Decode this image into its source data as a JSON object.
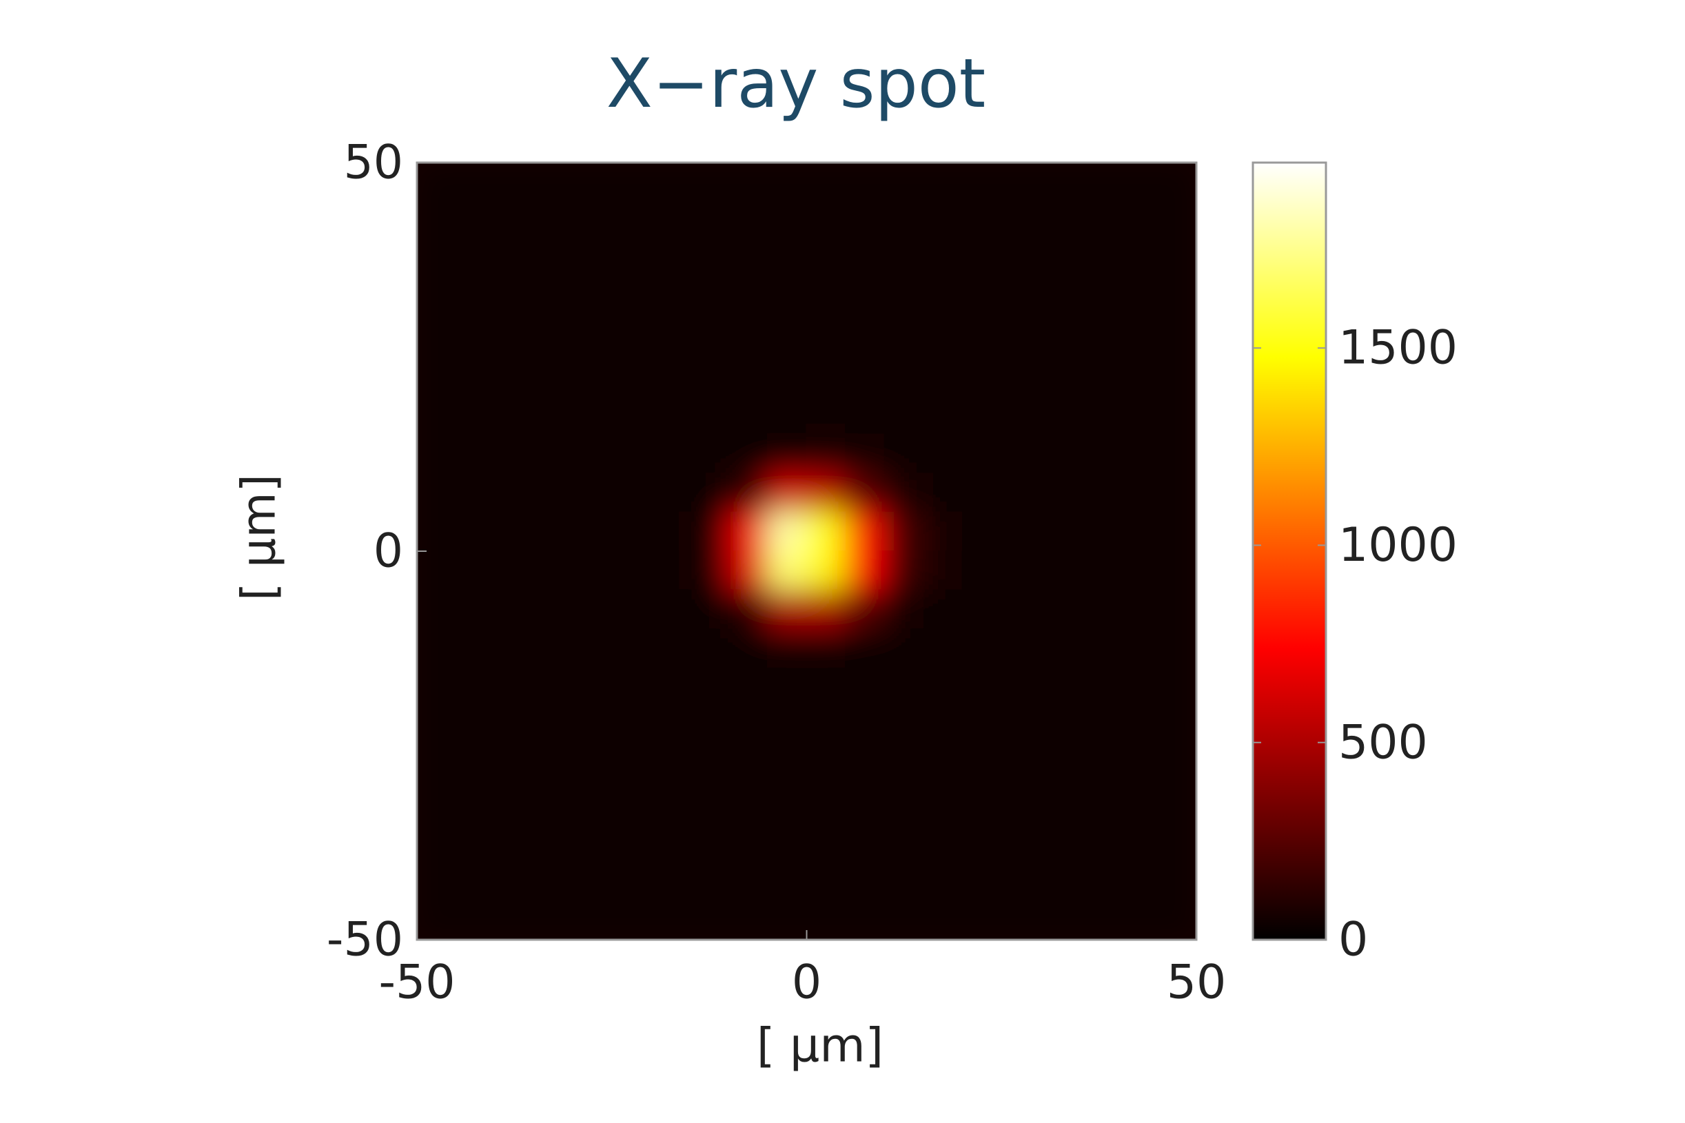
{
  "chart_data": {
    "type": "heatmap",
    "title": "X−ray spot",
    "xlabel": "[ μm]",
    "ylabel": "[ μm]",
    "xlim": [
      -50,
      50
    ],
    "xticks": [
      -50,
      0,
      50
    ],
    "ylim": [
      -50,
      50
    ],
    "yticks": [
      -50,
      0,
      50
    ],
    "colormap": "hot",
    "clim": [
      0,
      1970
    ],
    "cticks": [
      0,
      500,
      1000,
      1500
    ],
    "x": [
      -47.5,
      -42.5,
      -37.5,
      -32.5,
      -27.5,
      -22.5,
      -17.5,
      -12.5,
      -7.5,
      -2.5,
      2.5,
      7.5,
      12.5,
      17.5,
      22.5,
      27.5,
      32.5,
      37.5,
      42.5,
      47.5
    ],
    "y": [
      47.5,
      42.5,
      37.5,
      32.5,
      27.5,
      22.5,
      17.5,
      12.5,
      7.5,
      2.5,
      -2.5,
      -7.5,
      -12.5,
      -17.5,
      -22.5,
      -27.5,
      -32.5,
      -37.5,
      -42.5,
      -47.5
    ],
    "z": [
      [
        40,
        40,
        40,
        40,
        40,
        40,
        40,
        40,
        40,
        40,
        40,
        40,
        40,
        40,
        40,
        40,
        40,
        40,
        40,
        40
      ],
      [
        40,
        40,
        40,
        40,
        40,
        40,
        40,
        40,
        40,
        40,
        40,
        40,
        40,
        40,
        40,
        40,
        40,
        40,
        40,
        40
      ],
      [
        40,
        40,
        40,
        40,
        40,
        40,
        40,
        40,
        40,
        40,
        40,
        40,
        40,
        40,
        40,
        40,
        40,
        40,
        40,
        40
      ],
      [
        40,
        40,
        40,
        40,
        40,
        40,
        40,
        40,
        40,
        40,
        40,
        40,
        40,
        40,
        40,
        40,
        40,
        40,
        40,
        40
      ],
      [
        40,
        40,
        40,
        40,
        40,
        40,
        40,
        40,
        40,
        40,
        40,
        40,
        40,
        40,
        40,
        40,
        40,
        40,
        40,
        40
      ],
      [
        40,
        40,
        40,
        40,
        40,
        40,
        40,
        40,
        40,
        40,
        40,
        40,
        40,
        40,
        40,
        40,
        40,
        40,
        40,
        40
      ],
      [
        40,
        40,
        40,
        40,
        40,
        40,
        40,
        40,
        40,
        40,
        40,
        40,
        40,
        40,
        40,
        40,
        40,
        40,
        40,
        40
      ],
      [
        40,
        40,
        40,
        40,
        40,
        40,
        40,
        40,
        40,
        60,
        80,
        60,
        40,
        40,
        40,
        40,
        40,
        40,
        40,
        40
      ],
      [
        40,
        40,
        40,
        40,
        40,
        40,
        40,
        50,
        150,
        600,
        550,
        250,
        80,
        45,
        40,
        40,
        40,
        40,
        40,
        40
      ],
      [
        40,
        40,
        40,
        40,
        40,
        40,
        40,
        90,
        700,
        1800,
        1500,
        800,
        200,
        60,
        40,
        40,
        40,
        40,
        40,
        40
      ],
      [
        40,
        40,
        40,
        40,
        40,
        40,
        40,
        80,
        650,
        1700,
        1450,
        750,
        180,
        60,
        40,
        40,
        40,
        40,
        40,
        40
      ],
      [
        40,
        40,
        40,
        40,
        40,
        40,
        40,
        50,
        120,
        500,
        500,
        250,
        70,
        45,
        40,
        40,
        40,
        40,
        40,
        40
      ],
      [
        40,
        40,
        40,
        40,
        40,
        40,
        40,
        40,
        40,
        60,
        70,
        50,
        40,
        40,
        40,
        40,
        40,
        40,
        40,
        40
      ],
      [
        40,
        40,
        40,
        40,
        40,
        40,
        40,
        40,
        40,
        40,
        40,
        40,
        40,
        40,
        40,
        40,
        40,
        40,
        40,
        40
      ],
      [
        40,
        40,
        40,
        40,
        40,
        40,
        40,
        40,
        40,
        40,
        40,
        40,
        40,
        40,
        40,
        40,
        40,
        40,
        40,
        40
      ],
      [
        40,
        40,
        40,
        40,
        40,
        40,
        40,
        40,
        40,
        40,
        40,
        40,
        40,
        40,
        40,
        40,
        40,
        40,
        40,
        40
      ],
      [
        40,
        40,
        40,
        40,
        40,
        40,
        40,
        40,
        40,
        40,
        40,
        40,
        40,
        40,
        40,
        40,
        40,
        40,
        40,
        40
      ],
      [
        40,
        40,
        40,
        40,
        40,
        40,
        40,
        40,
        40,
        40,
        40,
        40,
        40,
        40,
        40,
        40,
        40,
        40,
        40,
        40
      ],
      [
        40,
        40,
        40,
        40,
        40,
        40,
        40,
        40,
        40,
        40,
        40,
        40,
        40,
        40,
        40,
        40,
        40,
        40,
        40,
        40
      ],
      [
        40,
        40,
        40,
        40,
        40,
        40,
        40,
        40,
        40,
        40,
        40,
        40,
        40,
        40,
        40,
        40,
        40,
        40,
        40,
        40
      ]
    ]
  }
}
